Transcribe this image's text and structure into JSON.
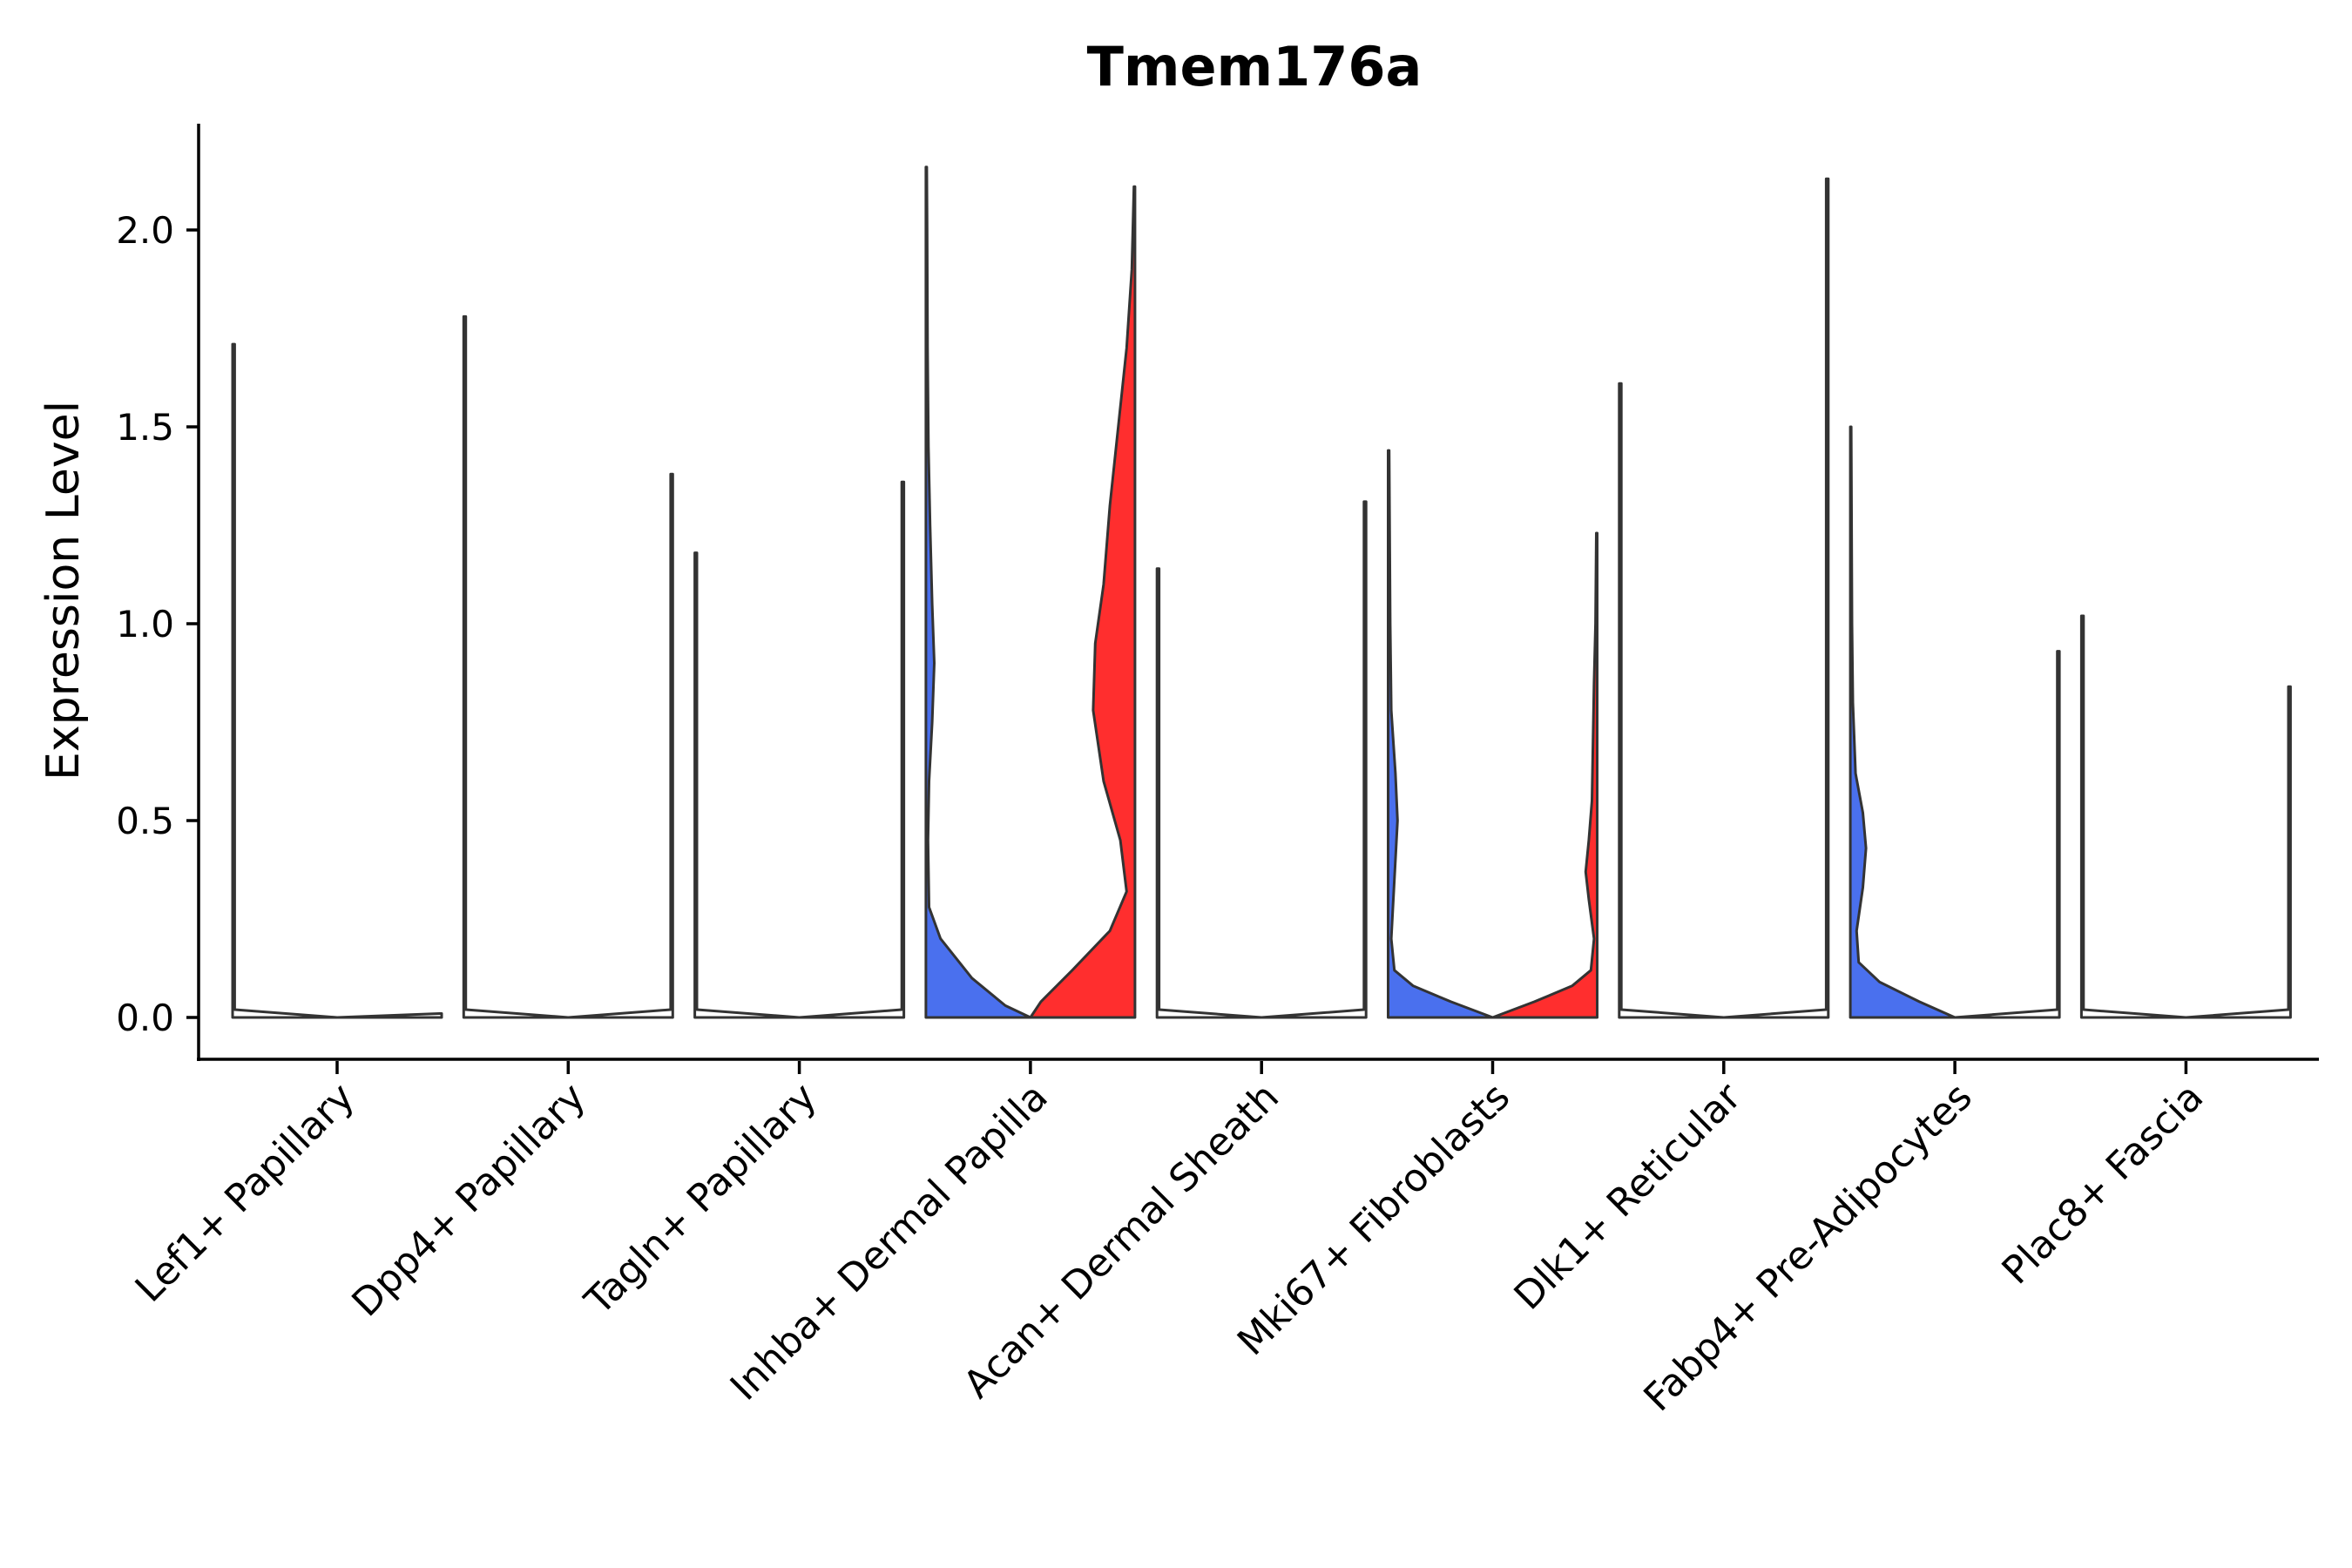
{
  "chart_data": {
    "type": "violin",
    "title": "Tmem176a",
    "xlabel": "",
    "ylabel": "Expression Level",
    "ylim": [
      -0.11,
      2.27
    ],
    "yticks": [
      0.0,
      0.5,
      1.0,
      1.5,
      2.0
    ],
    "ytick_labels": [
      "0.0",
      "0.5",
      "1.0",
      "1.5",
      "2.0"
    ],
    "grid": false,
    "legend": "none",
    "colors": {
      "blue": "#4A70EE",
      "red": "#FF2E2E",
      "none": "#ffffff",
      "outline": "#333333"
    },
    "categories": [
      "Lef1+ Papillary",
      "Dpp4+ Papillary",
      "Tagln+ Papillary",
      "Inhba+ Dermal Papilla",
      "Acan+ Dermal Sheath",
      "Mki67+ Fibroblasts",
      "Dlk1+ Reticular",
      "Fabp4+ Pre-Adipocytes",
      "Plac8+ Fascia"
    ],
    "violins": [
      {
        "category": "Lef1+ Papillary",
        "split": "left",
        "max": 1.71,
        "fill": "none",
        "profile": [
          [
            0,
            0.5
          ],
          [
            0.02,
            0.01
          ],
          [
            1.71,
            0.01
          ]
        ]
      },
      {
        "category": "Lef1+ Papillary",
        "split": "right",
        "max": 0.0,
        "fill": "none",
        "profile": [
          [
            0,
            0.5
          ],
          [
            0.01,
            0.01
          ]
        ]
      },
      {
        "category": "Dpp4+ Papillary",
        "split": "left",
        "max": 1.78,
        "fill": "none",
        "profile": [
          [
            0,
            0.5
          ],
          [
            0.02,
            0.01
          ],
          [
            1.78,
            0.01
          ]
        ]
      },
      {
        "category": "Dpp4+ Papillary",
        "split": "right",
        "max": 1.38,
        "fill": "none",
        "profile": [
          [
            0,
            0.5
          ],
          [
            0.02,
            0.01
          ],
          [
            1.38,
            0.01
          ]
        ]
      },
      {
        "category": "Tagln+ Papillary",
        "split": "left",
        "max": 1.18,
        "fill": "none",
        "profile": [
          [
            0,
            0.5
          ],
          [
            0.02,
            0.01
          ],
          [
            1.18,
            0.01
          ]
        ]
      },
      {
        "category": "Tagln+ Papillary",
        "split": "right",
        "max": 1.36,
        "fill": "none",
        "profile": [
          [
            0,
            0.5
          ],
          [
            0.02,
            0.01
          ],
          [
            1.36,
            0.01
          ]
        ]
      },
      {
        "category": "Inhba+ Dermal Papilla",
        "split": "left",
        "max": 2.16,
        "fill": "blue",
        "profile": [
          [
            0,
            0.5
          ],
          [
            0.03,
            0.38
          ],
          [
            0.1,
            0.22
          ],
          [
            0.2,
            0.07
          ],
          [
            0.28,
            0.015
          ],
          [
            0.45,
            0.01
          ],
          [
            0.6,
            0.015
          ],
          [
            0.75,
            0.03
          ],
          [
            0.9,
            0.04
          ],
          [
            1.05,
            0.03
          ],
          [
            1.25,
            0.02
          ],
          [
            1.45,
            0.012
          ],
          [
            1.7,
            0.008
          ],
          [
            2.0,
            0.006
          ],
          [
            2.16,
            0.004
          ]
        ]
      },
      {
        "category": "Inhba+ Dermal Papilla",
        "split": "right",
        "max": 2.11,
        "fill": "red",
        "profile": [
          [
            0,
            0.5
          ],
          [
            0.04,
            0.45
          ],
          [
            0.12,
            0.3
          ],
          [
            0.22,
            0.12
          ],
          [
            0.32,
            0.04
          ],
          [
            0.45,
            0.07
          ],
          [
            0.6,
            0.15
          ],
          [
            0.78,
            0.2
          ],
          [
            0.95,
            0.19
          ],
          [
            1.1,
            0.15
          ],
          [
            1.3,
            0.12
          ],
          [
            1.5,
            0.08
          ],
          [
            1.7,
            0.04
          ],
          [
            1.9,
            0.015
          ],
          [
            2.11,
            0.005
          ]
        ]
      },
      {
        "category": "Acan+ Dermal Sheath",
        "split": "left",
        "max": 1.14,
        "fill": "none",
        "profile": [
          [
            0,
            0.5
          ],
          [
            0.02,
            0.01
          ],
          [
            1.14,
            0.01
          ]
        ]
      },
      {
        "category": "Acan+ Dermal Sheath",
        "split": "right",
        "max": 1.31,
        "fill": "none",
        "profile": [
          [
            0,
            0.5
          ],
          [
            0.02,
            0.01
          ],
          [
            1.31,
            0.01
          ]
        ]
      },
      {
        "category": "Mki67+ Fibroblasts",
        "split": "left",
        "max": 1.44,
        "fill": "blue",
        "profile": [
          [
            0,
            0.5
          ],
          [
            0.04,
            0.3
          ],
          [
            0.08,
            0.12
          ],
          [
            0.12,
            0.03
          ],
          [
            0.2,
            0.015
          ],
          [
            0.35,
            0.03
          ],
          [
            0.5,
            0.045
          ],
          [
            0.62,
            0.035
          ],
          [
            0.78,
            0.015
          ],
          [
            1.0,
            0.01
          ],
          [
            1.44,
            0.005
          ]
        ]
      },
      {
        "category": "Mki67+ Fibroblasts",
        "split": "right",
        "max": 1.23,
        "fill": "red",
        "profile": [
          [
            0,
            0.5
          ],
          [
            0.04,
            0.3
          ],
          [
            0.08,
            0.12
          ],
          [
            0.12,
            0.03
          ],
          [
            0.2,
            0.015
          ],
          [
            0.3,
            0.04
          ],
          [
            0.37,
            0.055
          ],
          [
            0.45,
            0.04
          ],
          [
            0.55,
            0.025
          ],
          [
            0.7,
            0.02
          ],
          [
            0.85,
            0.015
          ],
          [
            1.0,
            0.008
          ],
          [
            1.23,
            0.004
          ]
        ]
      },
      {
        "category": "Dlk1+ Reticular",
        "split": "left",
        "max": 1.61,
        "fill": "none",
        "profile": [
          [
            0,
            0.5
          ],
          [
            0.02,
            0.01
          ],
          [
            1.61,
            0.01
          ]
        ]
      },
      {
        "category": "Dlk1+ Reticular",
        "split": "right",
        "max": 2.13,
        "fill": "none",
        "profile": [
          [
            0,
            0.5
          ],
          [
            0.02,
            0.01
          ],
          [
            2.13,
            0.01
          ]
        ]
      },
      {
        "category": "Fabp4+ Pre-Adipocytes",
        "split": "left",
        "max": 1.5,
        "fill": "blue",
        "profile": [
          [
            0,
            0.5
          ],
          [
            0.04,
            0.33
          ],
          [
            0.09,
            0.14
          ],
          [
            0.14,
            0.04
          ],
          [
            0.22,
            0.03
          ],
          [
            0.33,
            0.06
          ],
          [
            0.43,
            0.075
          ],
          [
            0.52,
            0.06
          ],
          [
            0.62,
            0.025
          ],
          [
            0.8,
            0.012
          ],
          [
            1.0,
            0.008
          ],
          [
            1.5,
            0.004
          ]
        ]
      },
      {
        "category": "Fabp4+ Pre-Adipocytes",
        "split": "right",
        "max": 0.93,
        "fill": "none",
        "profile": [
          [
            0,
            0.5
          ],
          [
            0.02,
            0.01
          ],
          [
            0.93,
            0.01
          ]
        ]
      },
      {
        "category": "Plac8+ Fascia",
        "split": "left",
        "max": 1.02,
        "fill": "none",
        "profile": [
          [
            0,
            0.5
          ],
          [
            0.02,
            0.01
          ],
          [
            1.02,
            0.01
          ]
        ]
      },
      {
        "category": "Plac8+ Fascia",
        "split": "right",
        "max": 0.84,
        "fill": "none",
        "profile": [
          [
            0,
            0.5
          ],
          [
            0.02,
            0.01
          ],
          [
            0.84,
            0.01
          ]
        ]
      }
    ]
  }
}
